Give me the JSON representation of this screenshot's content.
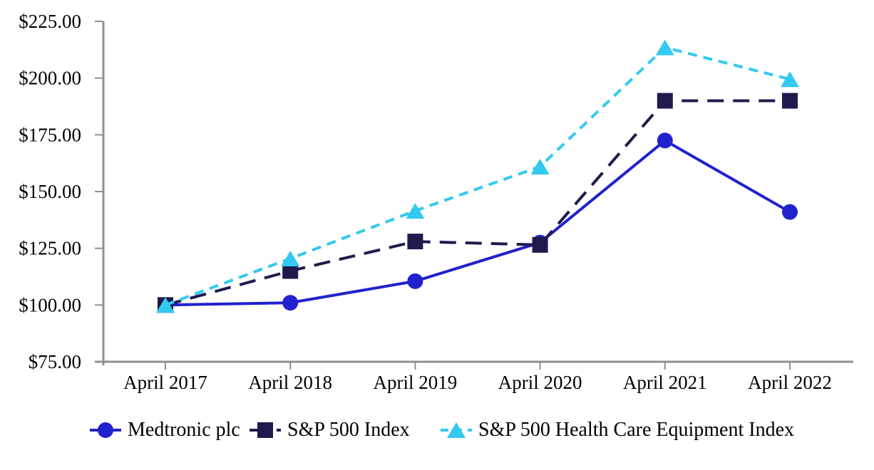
{
  "chart_data": {
    "type": "line",
    "title": "",
    "categories": [
      "April 2017",
      "April 2018",
      "April 2019",
      "April 2020",
      "April 2021",
      "April 2022"
    ],
    "series": [
      {
        "name": "Medtronic plc",
        "marker": "circle",
        "color": "#2121CE",
        "line_style": "solid",
        "values": [
          100,
          101,
          110.5,
          127.5,
          172.5,
          141
        ]
      },
      {
        "name": "S&P 500 Index",
        "marker": "square",
        "color": "#1F1B4D",
        "line_style": "long-dash",
        "values": [
          100,
          115,
          128,
          126.5,
          190,
          190
        ]
      },
      {
        "name": "S&P 500 Health Care Equipment Index",
        "marker": "triangle",
        "color": "#33C9F0",
        "line_style": "dash",
        "values": [
          100,
          120.5,
          141.5,
          161,
          213.5,
          199.5
        ]
      }
    ],
    "y_axis": {
      "min": 75,
      "max": 225,
      "ticks": [
        {
          "label": "$225.00",
          "value": 225
        },
        {
          "label": "$200.00",
          "value": 200
        },
        {
          "label": "$175.00",
          "value": 175
        },
        {
          "label": "$150.00",
          "value": 150
        },
        {
          "label": "$125.00",
          "value": 125
        },
        {
          "label": "$100.00",
          "value": 100
        },
        {
          "label": "$75.00",
          "value": 75
        }
      ]
    },
    "xlabel": "",
    "ylabel": "",
    "grid": false,
    "legend_position": "bottom",
    "axis_color": "#8f8f8f",
    "text_color": "#000000",
    "background_color": "#ffffff"
  }
}
